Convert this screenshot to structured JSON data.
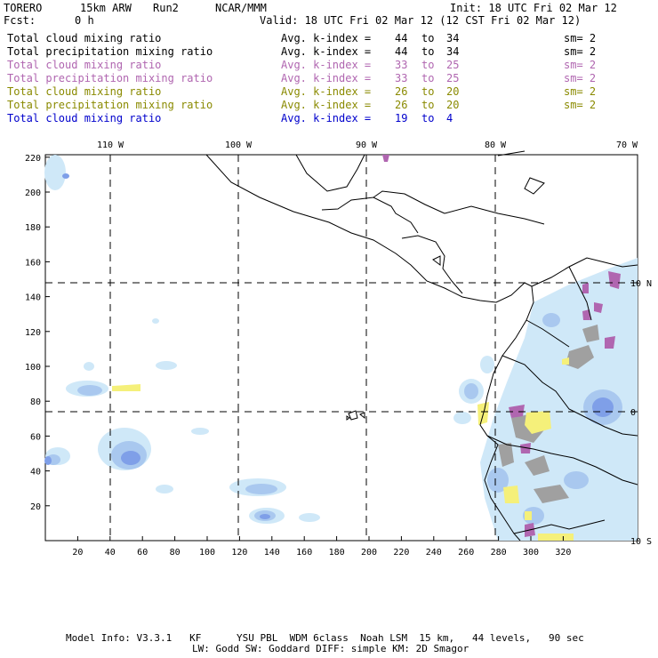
{
  "header": {
    "model": "TORERO",
    "resolution": "15km ARW",
    "run": "Run2",
    "org": "NCAR/MMM",
    "init": "Init: 18 UTC Fri 02 Mar 12",
    "fcst_label": "Fcst:",
    "fcst_value": "0 h",
    "valid": "Valid: 18 UTC Fri 02 Mar 12 (12 CST Fri 02 Mar 12)"
  },
  "fields": [
    {
      "name": "Total cloud mixing ratio",
      "avg": "Avg. k-index =",
      "k_top": "44",
      "to": "to",
      "k_bottom": "34",
      "sm": "sm= 2",
      "color": "#000000"
    },
    {
      "name": "Total precipitation mixing ratio",
      "avg": "Avg. k-index =",
      "k_top": "44",
      "to": "to",
      "k_bottom": "34",
      "sm": "sm= 2",
      "color": "#000000"
    },
    {
      "name": "Total cloud mixing ratio",
      "avg": "Avg. k-index =",
      "k_top": "33",
      "to": "to",
      "k_bottom": "25",
      "sm": "sm= 2",
      "color": "#b066b0"
    },
    {
      "name": "Total precipitation mixing ratio",
      "avg": "Avg. k-index =",
      "k_top": "33",
      "to": "to",
      "k_bottom": "25",
      "sm": "sm= 2",
      "color": "#b066b0"
    },
    {
      "name": "Total cloud mixing ratio",
      "avg": "Avg. k-index =",
      "k_top": "26",
      "to": "to",
      "k_bottom": "20",
      "sm": "sm= 2",
      "color": "#8a8a00"
    },
    {
      "name": "Total precipitation mixing ratio",
      "avg": "Avg. k-index =",
      "k_top": "26",
      "to": "to",
      "k_bottom": "20",
      "sm": "sm= 2",
      "color": "#8a8a00"
    },
    {
      "name": "Total cloud mixing ratio",
      "avg": "Avg. k-index =",
      "k_top": "19",
      "to": "to",
      "k_bottom": "4",
      "sm": "",
      "color": "#0000cc"
    }
  ],
  "map": {
    "x_ticks": [
      "20",
      "40",
      "60",
      "80",
      "100",
      "120",
      "140",
      "160",
      "180",
      "200",
      "220",
      "240",
      "260",
      "280",
      "300",
      "320"
    ],
    "y_ticks": [
      "20",
      "40",
      "60",
      "80",
      "100",
      "120",
      "140",
      "160",
      "180",
      "200",
      "220"
    ],
    "lon_labels": [
      "110 W",
      "100 W",
      "90 W",
      "80 W",
      "70 W"
    ],
    "lat_labels": [
      "10 N",
      "0",
      "10 S"
    ],
    "colors": {
      "light_blue": "#cfe8f8",
      "mid_blue": "#a9c8ef",
      "deep_blue": "#7f9fe8",
      "purple": "#b066b0",
      "olive_yellow": "#f5f07a",
      "gray": "#a0a0a0"
    }
  },
  "footer": {
    "line1": "Model Info: V3.3.1   KF      YSU PBL  WDM 6class  Noah LSM  15 km,   44 levels,   90 sec",
    "line2": "LW: Godd SW: Goddard DIFF: simple KM: 2D Smagor"
  }
}
